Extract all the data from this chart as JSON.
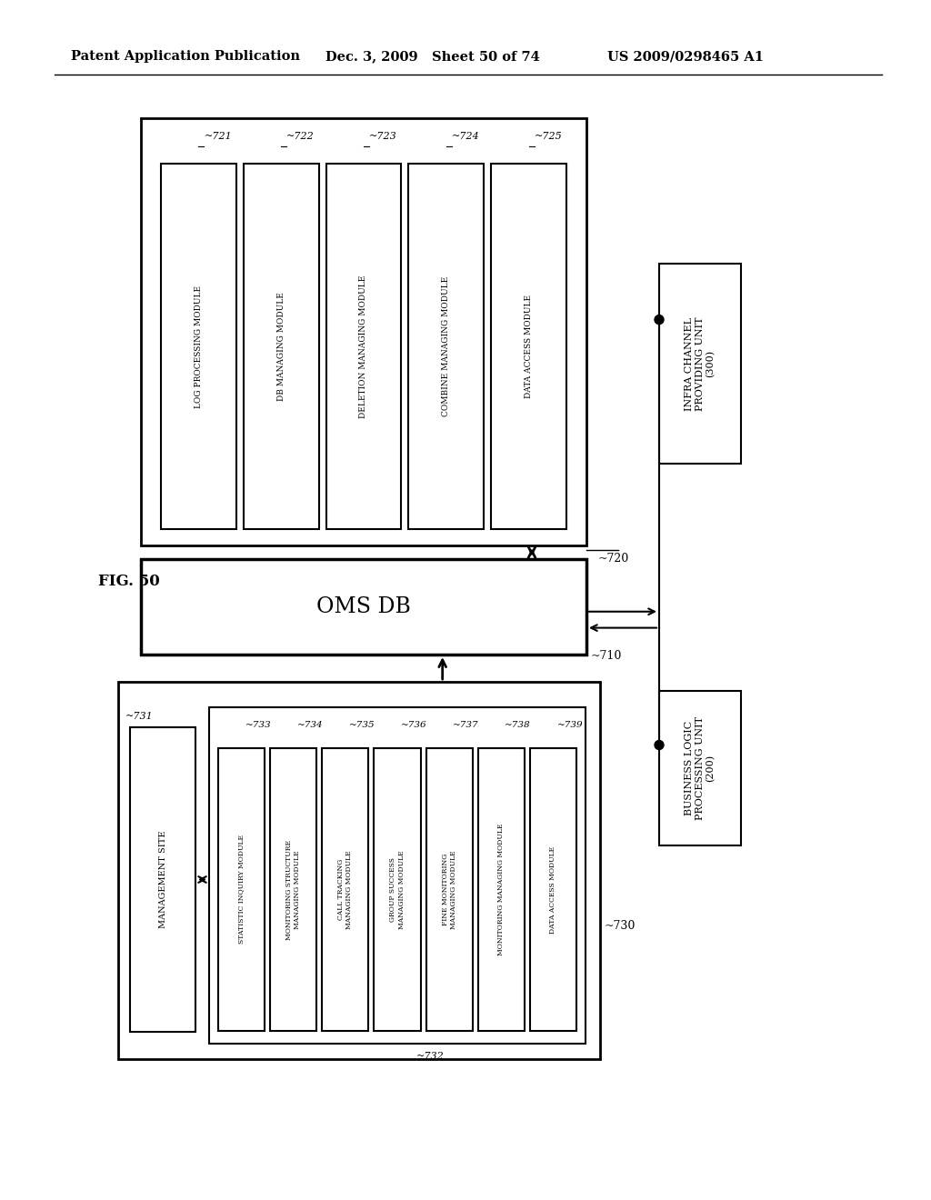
{
  "title_left": "Patent Application Publication",
  "title_mid": "Dec. 3, 2009   Sheet 50 of 74",
  "title_right": "US 2009/0298465 A1",
  "fig_label": "FIG. 50",
  "bg_color": "#ffffff",
  "modules_720": [
    {
      "label": "LOG PROCESSING MODULE",
      "id": "721"
    },
    {
      "label": "DB MANAGING MODULE",
      "id": "722"
    },
    {
      "label": "DELETION MANAGING MODULE",
      "id": "723"
    },
    {
      "label": "COMBINE MANAGING MODULE",
      "id": "724"
    },
    {
      "label": "DATA ACCESS MODULE",
      "id": "725"
    }
  ],
  "box_720_label": "720",
  "oms_db_label": "OMS DB",
  "oms_db_id": "710",
  "modules_730": [
    {
      "label": "STATISTIC INQUIRY MODULE",
      "id": "733"
    },
    {
      "label": "MONITORING STRUCTURE\nMANAGING MODULE",
      "id": "734"
    },
    {
      "label": "CALL TRACKING\nMANAGING MODULE",
      "id": "735"
    },
    {
      "label": "GROUP SUCCESS\nMANAGING MODULE",
      "id": "736"
    },
    {
      "label": "FINE MONITORING\nMANAGING MODULE",
      "id": "737"
    },
    {
      "label": "MONITORING MANAGING MODULE",
      "id": "738"
    },
    {
      "label": "DATA ACCESS MODULE",
      "id": "739"
    }
  ],
  "mgmt_site_label": "MANAGEMENT SITE",
  "mgmt_site_id": "731",
  "box_730_label": "730",
  "inner_730_label": "732",
  "infra_label": "INFRA CHANNEL\nPROVIDING UNIT\n(300)",
  "business_label": "BUSINESS LOGIC\nPROCESSING UNIT\n(200)"
}
